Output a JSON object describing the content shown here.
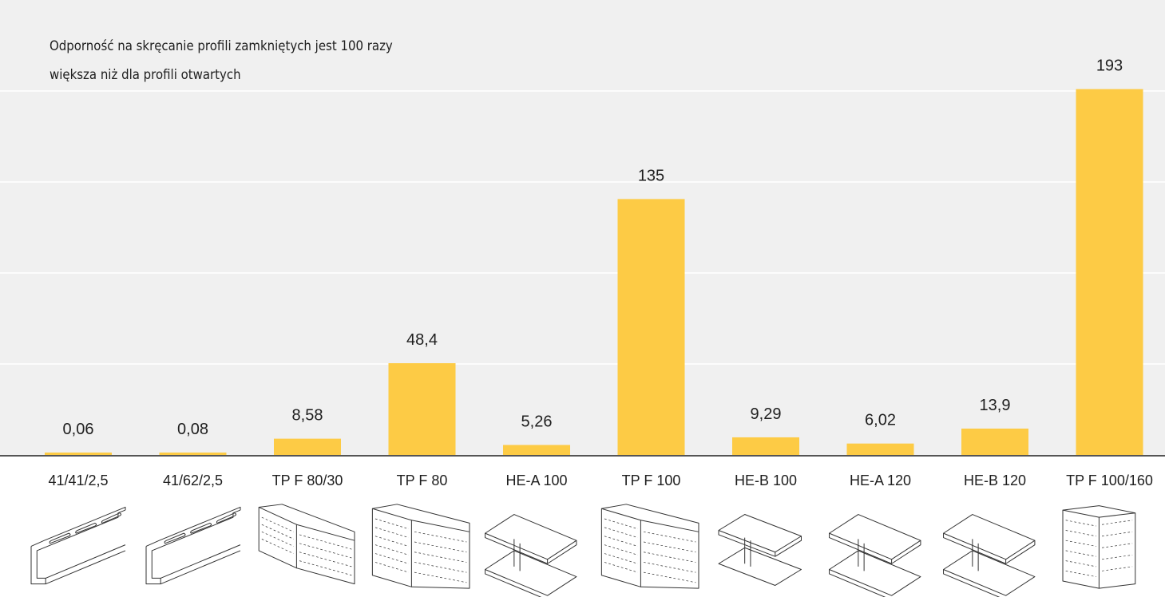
{
  "note": {
    "line1": "Odporność na skręcanie profili zamkniętych jest 100 razy",
    "line2": "większa niż dla profili otwartych"
  },
  "colors": {
    "bar": "#fdcb45",
    "background": "#f0f0f0",
    "gridline": "#ffffff",
    "axis": "#555555",
    "text": "#1e1e1e"
  },
  "chart_data": {
    "type": "bar",
    "categories": [
      "41/41/2,5",
      "41/62/2,5",
      "TP F 80/30",
      "TP F 80",
      "HE-A 100",
      "TP F 100",
      "HE-B 100",
      "HE-A 120",
      "HE-B 120",
      "TP F 100/160"
    ],
    "values": [
      0.06,
      0.08,
      8.58,
      48.4,
      5.26,
      135,
      9.29,
      6.02,
      13.9,
      193
    ],
    "value_labels": [
      "0,06",
      "0,08",
      "8,58",
      "48,4",
      "5,26",
      "135",
      "9,29",
      "6,02",
      "13,9",
      "193"
    ],
    "title": "",
    "xlabel": "",
    "ylabel": "",
    "ylim": [
      0,
      240
    ],
    "grid": true,
    "legend": "none"
  },
  "profiles": [
    {
      "name": "c-channel-41-41-icon",
      "kind": "c-channel"
    },
    {
      "name": "c-channel-41-62-icon",
      "kind": "c-channel"
    },
    {
      "name": "perforated-profile-80-30-icon",
      "kind": "perforated-small"
    },
    {
      "name": "perforated-profile-80-icon",
      "kind": "perforated"
    },
    {
      "name": "i-beam-hea-100-icon",
      "kind": "i-beam"
    },
    {
      "name": "perforated-profile-100-icon",
      "kind": "perforated"
    },
    {
      "name": "i-beam-heb-100-icon",
      "kind": "i-beam-small"
    },
    {
      "name": "i-beam-hea-120-icon",
      "kind": "i-beam"
    },
    {
      "name": "i-beam-heb-120-icon",
      "kind": "i-beam"
    },
    {
      "name": "perforated-profile-100-160-icon",
      "kind": "perforated-tall"
    }
  ]
}
